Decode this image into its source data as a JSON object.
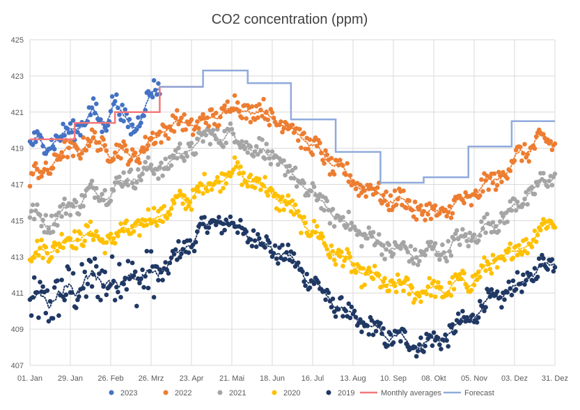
{
  "chart_data": {
    "type": "scatter",
    "title": "CO2 concentration (ppm)",
    "xlabel": "",
    "ylabel": "",
    "ylim": [
      407,
      425
    ],
    "xlim": [
      0,
      364
    ],
    "yticks": [
      407,
      409,
      411,
      413,
      415,
      417,
      419,
      421,
      423,
      425
    ],
    "xticks": [
      {
        "day": 0,
        "label": "01. Jan"
      },
      {
        "day": 28,
        "label": "29. Jan"
      },
      {
        "day": 56,
        "label": "26. Feb"
      },
      {
        "day": 84,
        "label": "26. Mrz"
      },
      {
        "day": 112,
        "label": "23. Apr"
      },
      {
        "day": 140,
        "label": "21. Mai"
      },
      {
        "day": 168,
        "label": "18. Jun"
      },
      {
        "day": 196,
        "label": "16. Jul"
      },
      {
        "day": 224,
        "label": "13. Aug"
      },
      {
        "day": 252,
        "label": "10. Sep"
      },
      {
        "day": 280,
        "label": "08. Okt"
      },
      {
        "day": 308,
        "label": "05. Nov"
      },
      {
        "day": 336,
        "label": "03. Dez"
      },
      {
        "day": 364,
        "label": "31. Dez"
      }
    ],
    "grid": true,
    "legend_position": "bottom",
    "series": [
      {
        "name": "2023",
        "kind": "dots",
        "color": "#4472C4",
        "anchors": [
          [
            0,
            419.3
          ],
          [
            8,
            419.2
          ],
          [
            15,
            419.5
          ],
          [
            22,
            419.6
          ],
          [
            29,
            420.0
          ],
          [
            36,
            420.5
          ],
          [
            44,
            421.0
          ],
          [
            51,
            420.2
          ],
          [
            58,
            421.8
          ],
          [
            65,
            420.5
          ],
          [
            72,
            420.2
          ],
          [
            79,
            421.2
          ],
          [
            86,
            422.2
          ],
          [
            90,
            422.6
          ]
        ]
      },
      {
        "name": "2022",
        "kind": "dots",
        "color": "#ED7D31",
        "anchors": [
          [
            0,
            417.4
          ],
          [
            10,
            417.7
          ],
          [
            20,
            418.6
          ],
          [
            31,
            418.9
          ],
          [
            40,
            419.4
          ],
          [
            50,
            419.2
          ],
          [
            59,
            418.8
          ],
          [
            70,
            418.6
          ],
          [
            80,
            419.0
          ],
          [
            92,
            420.1
          ],
          [
            105,
            420.4
          ],
          [
            118,
            420.3
          ],
          [
            130,
            420.8
          ],
          [
            140,
            421.4
          ],
          [
            150,
            421.2
          ],
          [
            162,
            421.0
          ],
          [
            174,
            420.5
          ],
          [
            186,
            419.9
          ],
          [
            198,
            418.9
          ],
          [
            210,
            418.1
          ],
          [
            222,
            417.3
          ],
          [
            234,
            416.8
          ],
          [
            246,
            416.3
          ],
          [
            258,
            416.1
          ],
          [
            270,
            415.6
          ],
          [
            280,
            415.3
          ],
          [
            292,
            415.7
          ],
          [
            304,
            416.2
          ],
          [
            316,
            416.9
          ],
          [
            328,
            417.6
          ],
          [
            340,
            418.7
          ],
          [
            352,
            419.3
          ],
          [
            364,
            419.3
          ]
        ]
      },
      {
        "name": "2021",
        "kind": "dots",
        "color": "#A5A5A5",
        "anchors": [
          [
            0,
            415.4
          ],
          [
            10,
            414.9
          ],
          [
            20,
            415.3
          ],
          [
            31,
            415.9
          ],
          [
            40,
            416.5
          ],
          [
            50,
            416.6
          ],
          [
            59,
            416.8
          ],
          [
            70,
            417.5
          ],
          [
            80,
            417.7
          ],
          [
            92,
            418.0
          ],
          [
            105,
            418.7
          ],
          [
            118,
            419.4
          ],
          [
            130,
            419.8
          ],
          [
            140,
            419.7
          ],
          [
            150,
            419.3
          ],
          [
            162,
            418.8
          ],
          [
            174,
            418.1
          ],
          [
            186,
            417.2
          ],
          [
            198,
            416.3
          ],
          [
            210,
            415.4
          ],
          [
            222,
            414.7
          ],
          [
            234,
            414.1
          ],
          [
            246,
            413.6
          ],
          [
            258,
            413.3
          ],
          [
            270,
            413.1
          ],
          [
            280,
            413.3
          ],
          [
            292,
            413.6
          ],
          [
            304,
            414.1
          ],
          [
            316,
            414.6
          ],
          [
            328,
            415.2
          ],
          [
            340,
            416.0
          ],
          [
            352,
            416.9
          ],
          [
            364,
            417.4
          ]
        ]
      },
      {
        "name": "2020",
        "kind": "dots",
        "color": "#FFC000",
        "anchors": [
          [
            0,
            413.1
          ],
          [
            10,
            413.4
          ],
          [
            20,
            413.7
          ],
          [
            31,
            414.1
          ],
          [
            40,
            414.3
          ],
          [
            50,
            413.9
          ],
          [
            59,
            414.1
          ],
          [
            70,
            414.5
          ],
          [
            80,
            414.9
          ],
          [
            92,
            415.5
          ],
          [
            105,
            416.0
          ],
          [
            118,
            416.7
          ],
          [
            130,
            417.3
          ],
          [
            140,
            417.8
          ],
          [
            150,
            417.4
          ],
          [
            162,
            416.9
          ],
          [
            174,
            416.1
          ],
          [
            186,
            415.2
          ],
          [
            198,
            414.3
          ],
          [
            210,
            413.3
          ],
          [
            222,
            412.5
          ],
          [
            234,
            411.9
          ],
          [
            246,
            411.5
          ],
          [
            258,
            411.3
          ],
          [
            270,
            411.1
          ],
          [
            280,
            411.1
          ],
          [
            292,
            411.3
          ],
          [
            304,
            411.7
          ],
          [
            316,
            412.3
          ],
          [
            328,
            412.9
          ],
          [
            340,
            413.5
          ],
          [
            352,
            414.4
          ],
          [
            364,
            415.1
          ]
        ]
      },
      {
        "name": "2019",
        "kind": "dots",
        "color": "#203864",
        "anchors": [
          [
            0,
            410.2
          ],
          [
            10,
            410.4
          ],
          [
            20,
            410.8
          ],
          [
            31,
            411.3
          ],
          [
            40,
            411.6
          ],
          [
            50,
            411.8
          ],
          [
            59,
            411.9
          ],
          [
            70,
            411.9
          ],
          [
            80,
            411.8
          ],
          [
            92,
            412.2
          ],
          [
            105,
            413.3
          ],
          [
            118,
            414.4
          ],
          [
            130,
            415.0
          ],
          [
            140,
            414.8
          ],
          [
            150,
            414.3
          ],
          [
            162,
            413.8
          ],
          [
            174,
            413.2
          ],
          [
            186,
            412.5
          ],
          [
            198,
            411.4
          ],
          [
            210,
            410.5
          ],
          [
            222,
            409.7
          ],
          [
            234,
            409.1
          ],
          [
            246,
            408.7
          ],
          [
            258,
            408.4
          ],
          [
            270,
            408.2
          ],
          [
            280,
            408.3
          ],
          [
            292,
            408.8
          ],
          [
            304,
            409.6
          ],
          [
            316,
            410.4
          ],
          [
            328,
            410.9
          ],
          [
            340,
            411.5
          ],
          [
            352,
            412.3
          ],
          [
            364,
            412.9
          ]
        ]
      },
      {
        "name": "Monthly averages",
        "kind": "step",
        "color": "#F4777A",
        "steps": [
          [
            0,
            31,
            419.5
          ],
          [
            31,
            59,
            420.4
          ],
          [
            59,
            90,
            421.0
          ],
          [
            90,
            120,
            422.4
          ]
        ]
      },
      {
        "name": "Forecast",
        "kind": "step",
        "color": "#8FAADC",
        "steps": [
          [
            90,
            120,
            422.4
          ],
          [
            120,
            151,
            423.3
          ],
          [
            151,
            181,
            422.6
          ],
          [
            181,
            212,
            420.6
          ],
          [
            212,
            243,
            418.8
          ],
          [
            243,
            273,
            417.1
          ],
          [
            273,
            304,
            417.4
          ],
          [
            304,
            334,
            419.1
          ],
          [
            334,
            364,
            420.5
          ]
        ]
      }
    ],
    "legend": [
      "2023",
      "2022",
      "2021",
      "2020",
      "2019",
      "Monthly averages",
      "Forecast"
    ]
  }
}
